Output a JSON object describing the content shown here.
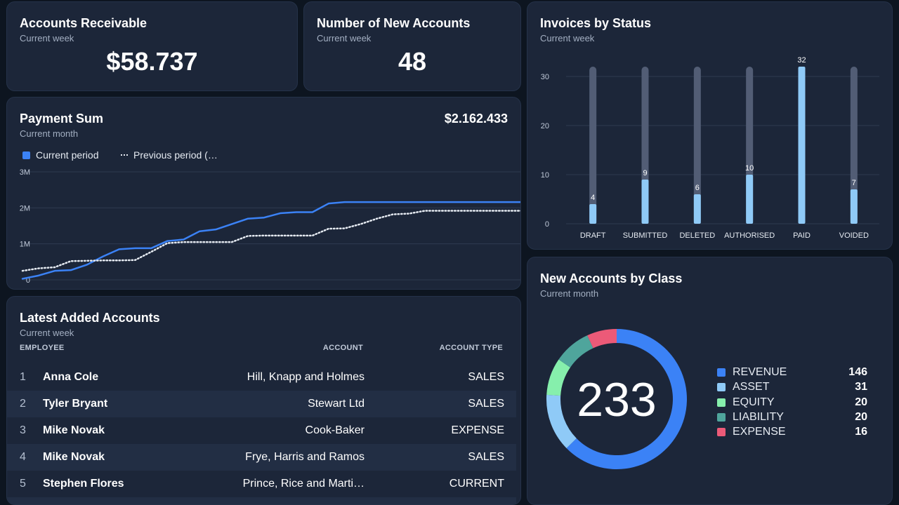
{
  "accounts_receivable": {
    "title": "Accounts Receivable",
    "subtitle": "Current week",
    "value": "$58.737"
  },
  "new_accounts": {
    "title": "Number of New Accounts",
    "subtitle": "Current week",
    "value": "48"
  },
  "payment_sum": {
    "title": "Payment Sum",
    "subtitle": "Current month",
    "total": "$2.162.433",
    "legend_current": "Current period",
    "legend_previous": "Previous period (…",
    "colors": {
      "current": "#3b82f6",
      "previous": "#e6ebf2"
    },
    "chart_data": {
      "type": "line",
      "ylim": [
        0,
        3000000
      ],
      "y_ticks": [
        "0",
        "1M",
        "2M",
        "3M"
      ],
      "x": [
        0,
        2,
        4,
        6,
        8,
        10,
        12,
        14,
        16,
        18,
        20,
        22,
        24,
        26,
        28,
        30,
        32,
        34,
        36,
        38,
        40,
        42,
        44,
        46,
        48,
        50,
        52,
        54,
        56,
        58,
        60,
        62
      ],
      "series": [
        {
          "name": "Current period",
          "values": [
            30000,
            120000,
            250000,
            270000,
            420000,
            650000,
            850000,
            880000,
            880000,
            1080000,
            1120000,
            1350000,
            1400000,
            1550000,
            1700000,
            1730000,
            1850000,
            1880000,
            1880000,
            2120000,
            2160000,
            2160000,
            2160000,
            2160000,
            2160000,
            2160000,
            2160000,
            2160000,
            2160000,
            2160000,
            2160000,
            2160000
          ]
        },
        {
          "name": "Previous period",
          "values": [
            250000,
            320000,
            350000,
            520000,
            530000,
            540000,
            540000,
            550000,
            780000,
            1020000,
            1050000,
            1050000,
            1050000,
            1050000,
            1220000,
            1230000,
            1230000,
            1230000,
            1230000,
            1420000,
            1430000,
            1550000,
            1700000,
            1820000,
            1840000,
            1920000,
            1920000,
            1920000,
            1920000,
            1920000,
            1920000,
            1920000
          ]
        }
      ]
    }
  },
  "invoices": {
    "title": "Invoices by Status",
    "subtitle": "Current week",
    "colors": {
      "bar": "#8fcaf7",
      "track": "#525d75"
    },
    "chart_data": {
      "type": "bar",
      "categories": [
        "DRAFT",
        "SUBMITTED",
        "DELETED",
        "AUTHORISED",
        "PAID",
        "VOIDED"
      ],
      "values": [
        4,
        9,
        6,
        10,
        32,
        7
      ],
      "track_max": 32,
      "ylim": [
        0,
        32
      ],
      "y_ticks": [
        0,
        10,
        20,
        30
      ]
    }
  },
  "latest_accounts": {
    "title": "Latest Added Accounts",
    "subtitle": "Current week",
    "columns": {
      "employee": "EMPLOYEE",
      "account": "ACCOUNT",
      "type": "ACCOUNT TYPE"
    },
    "rows": [
      {
        "idx": "1",
        "employee": "Anna Cole",
        "account": "Hill, Knapp and Holmes",
        "type": "SALES"
      },
      {
        "idx": "2",
        "employee": "Tyler Bryant",
        "account": "Stewart Ltd",
        "type": "SALES"
      },
      {
        "idx": "3",
        "employee": "Mike Novak",
        "account": "Cook-Baker",
        "type": "EXPENSE"
      },
      {
        "idx": "4",
        "employee": "Mike Novak",
        "account": "Frye, Harris and Ramos",
        "type": "SALES"
      },
      {
        "idx": "5",
        "employee": "Stephen Flores",
        "account": "Prince, Rice and Marti…",
        "type": "CURRENT"
      }
    ]
  },
  "accounts_by_class": {
    "title": "New Accounts by Class",
    "subtitle": "Current month",
    "total": "233",
    "chart_data": {
      "type": "pie",
      "categories": [
        "REVENUE",
        "ASSET",
        "EQUITY",
        "LIABILITY",
        "EXPENSE"
      ],
      "values": [
        146,
        31,
        20,
        20,
        16
      ],
      "colors": [
        "#3b82f6",
        "#8fcaf7",
        "#86efac",
        "#4fa59c",
        "#ec5a78"
      ]
    }
  }
}
